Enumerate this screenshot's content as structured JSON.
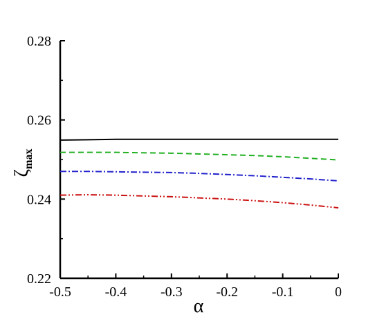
{
  "chart_data": {
    "type": "line",
    "title": "",
    "xlabel": "α",
    "ylabel": "ζ",
    "ylabel_subscript": "max",
    "xlim": [
      -0.5,
      0
    ],
    "ylim": [
      0.22,
      0.28
    ],
    "x_ticks": [
      -0.5,
      -0.4,
      -0.3,
      -0.2,
      -0.1,
      0
    ],
    "x_tick_labels": [
      "-0.5",
      "-0.4",
      "-0.3",
      "-0.2",
      "-0.1",
      "0"
    ],
    "y_ticks": [
      0.22,
      0.24,
      0.26,
      0.28
    ],
    "y_tick_labels": [
      "0.22",
      "0.24",
      "0.26",
      "0.28"
    ],
    "grid": false,
    "legend": "none",
    "x": [
      -0.5,
      -0.45,
      -0.4,
      -0.35,
      -0.3,
      -0.25,
      -0.2,
      -0.15,
      -0.1,
      -0.05,
      0
    ],
    "series": [
      {
        "color": "#000000",
        "dash": "solid",
        "values": [
          0.2549,
          0.255,
          0.2551,
          0.2551,
          0.2551,
          0.2551,
          0.2551,
          0.2551,
          0.2551,
          0.2551,
          0.2551
        ]
      },
      {
        "color": "#22b022",
        "dash": "dashed",
        "values": [
          0.2518,
          0.2518,
          0.2518,
          0.2517,
          0.2516,
          0.2514,
          0.2512,
          0.251,
          0.2507,
          0.2503,
          0.2499
        ]
      },
      {
        "color": "#2222cc",
        "dash": "dash-dot",
        "values": [
          0.247,
          0.247,
          0.2469,
          0.2468,
          0.2467,
          0.2465,
          0.2462,
          0.2459,
          0.2455,
          0.2451,
          0.2446
        ]
      },
      {
        "color": "#cc1111",
        "dash": "dash-dot-dot",
        "values": [
          0.241,
          0.2411,
          0.241,
          0.2408,
          0.2406,
          0.2403,
          0.24,
          0.2396,
          0.2391,
          0.2385,
          0.2378
        ]
      }
    ]
  }
}
